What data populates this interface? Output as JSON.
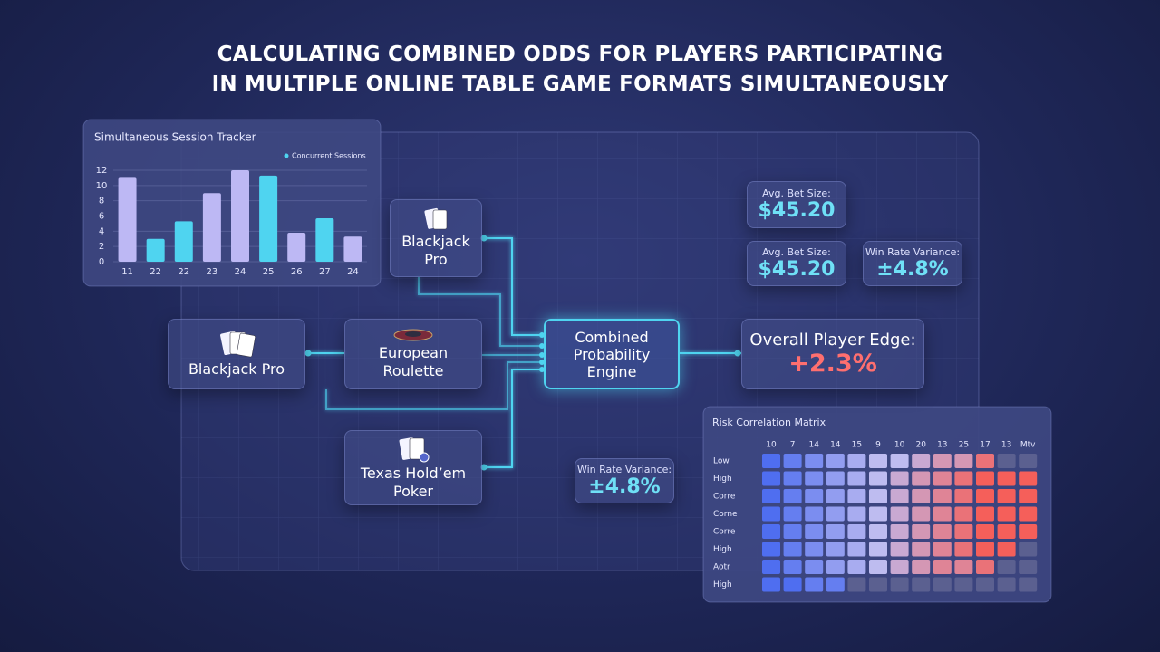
{
  "title_lines": [
    "CALCULATING COMBINED ODDS FOR PLAYERS PARTICIPATING",
    "IN MULTIPLE ONLINE TABLE GAME FORMATS SIMULTANEOUSLY"
  ],
  "chart_data": {
    "type": "bar",
    "title": "Simultaneous Session Tracker",
    "legend": "Concurrent Sessions",
    "legend_color": "#4fd4f0",
    "categories": [
      "11",
      "22",
      "22",
      "23",
      "24",
      "25",
      "26",
      "27",
      "24"
    ],
    "values": [
      11,
      3,
      5.3,
      9,
      12,
      11.3,
      3.8,
      5.7,
      3.3
    ],
    "colors": [
      "#bdb8f4",
      "#4fd4f0",
      "#4fd4f0",
      "#bdb8f4",
      "#bdb8f4",
      "#4fd4f0",
      "#bdb8f4",
      "#4fd4f0",
      "#bdb8f4"
    ],
    "ylim": [
      0,
      12
    ],
    "yticks": [
      0,
      2,
      4,
      6,
      8,
      10,
      12
    ],
    "grid": true
  },
  "nodes": [
    {
      "label": "Blackjack Pro"
    },
    {
      "label": "Blackjack Pro"
    },
    {
      "label": "European Roulette"
    },
    {
      "label": "Texas Hold’em Poker"
    }
  ],
  "engine": {
    "label": "Combined Probability Engine"
  },
  "output": {
    "label": "Overall Player Edge:",
    "value": "+2.3%"
  },
  "stats": [
    {
      "label": "Avg. Bet Size:",
      "value": "$45.20"
    },
    {
      "label": "Avg. Bet Size:",
      "value": "$45.20"
    },
    {
      "label": "Win Rate Variance:",
      "value": "±4.8%"
    },
    {
      "label": "Win Rate Variance:",
      "value": "±4.8%"
    }
  ],
  "matrix": {
    "title": "Risk Correlation Matrix",
    "columns": [
      "10",
      "7",
      "14",
      "14",
      "15",
      "9",
      "10",
      "20",
      "13",
      "25",
      "17",
      "13",
      "Mtv"
    ],
    "rows": [
      "Low",
      "High",
      "Corre",
      "Corne",
      "Corre",
      "High",
      "Aotr",
      "High"
    ],
    "values": [
      [
        0,
        1,
        2,
        3,
        4,
        5,
        5,
        6,
        7,
        7,
        9,
        null,
        null
      ],
      [
        0,
        1,
        2,
        3,
        4,
        5,
        6,
        7,
        8,
        9,
        10,
        10,
        10
      ],
      [
        0,
        1,
        2,
        3,
        4,
        5,
        6,
        7,
        8,
        9,
        10,
        10,
        10
      ],
      [
        0,
        1,
        2,
        3,
        4,
        5,
        6,
        7,
        8,
        9,
        10,
        10,
        10
      ],
      [
        0,
        1,
        2,
        3,
        4,
        5,
        6,
        7,
        8,
        9,
        10,
        10,
        10
      ],
      [
        0,
        1,
        2,
        3,
        4,
        5,
        6,
        7,
        8,
        9,
        10,
        10,
        null
      ],
      [
        0,
        1,
        2,
        3,
        4,
        5,
        6,
        7,
        8,
        8,
        9,
        null,
        null
      ],
      [
        0,
        0,
        1,
        1,
        null,
        null,
        null,
        null,
        null,
        null,
        null,
        null,
        null
      ]
    ]
  }
}
